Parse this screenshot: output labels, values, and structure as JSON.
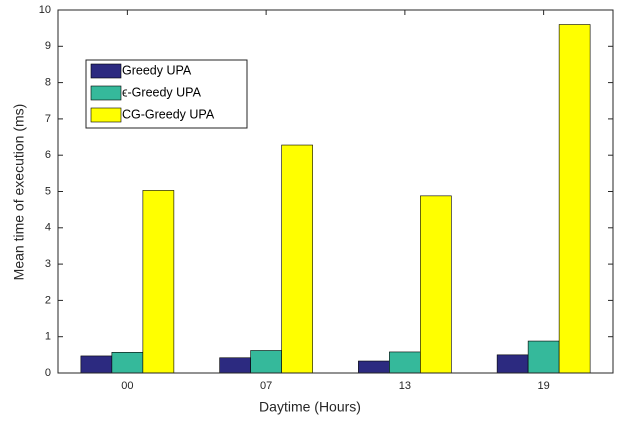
{
  "chart_data": {
    "type": "bar",
    "x_label": "Daytime (Hours)",
    "y_label": "Mean time of execution (ms)",
    "categories": [
      "00",
      "07",
      "13",
      "19"
    ],
    "series": [
      {
        "name": "Greedy UPA",
        "color": "#2c2a80",
        "values": [
          0.47,
          0.42,
          0.33,
          0.5
        ]
      },
      {
        "name": "ϵ-Greedy UPA",
        "color": "#35b99b",
        "values": [
          0.57,
          0.62,
          0.58,
          0.88
        ]
      },
      {
        "name": "CG-Greedy UPA",
        "color": "#ffff00",
        "values": [
          5.03,
          6.28,
          4.88,
          9.6
        ]
      }
    ],
    "ylim": [
      0,
      10
    ],
    "yticks": [
      0,
      1,
      2,
      3,
      4,
      5,
      6,
      7,
      8,
      9,
      10
    ],
    "legend": "upper-left"
  }
}
